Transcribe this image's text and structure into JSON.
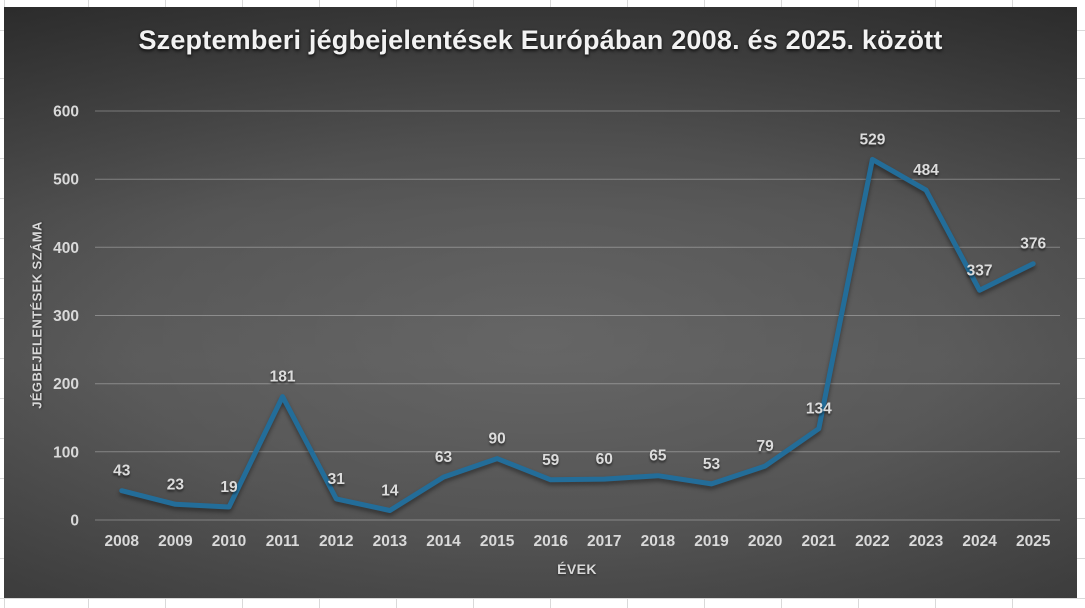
{
  "chart_data": {
    "type": "line",
    "title": "Szeptemberi jégbejelentések Európában 2008. és 2025. között",
    "xlabel": "ÉVEK",
    "ylabel": "JÉGBEJELENTÉSEK SZÁMA",
    "categories": [
      "2008",
      "2009",
      "2010",
      "2011",
      "2012",
      "2013",
      "2014",
      "2015",
      "2016",
      "2017",
      "2018",
      "2019",
      "2020",
      "2021",
      "2022",
      "2023",
      "2024",
      "2025"
    ],
    "values": [
      43,
      23,
      19,
      181,
      31,
      14,
      63,
      90,
      59,
      60,
      65,
      53,
      79,
      134,
      529,
      484,
      337,
      376
    ],
    "ylim": [
      0,
      600
    ],
    "yticks": [
      0,
      100,
      200,
      300,
      400,
      500,
      600
    ],
    "grid": true,
    "legend": "none",
    "data_labels": true,
    "colors": {
      "line": "#236D99",
      "label": "#dcdcdc",
      "tick": "#d9d9d9",
      "title": "#f2f2f2",
      "gridline": "rgba(255,255,255,0.30)",
      "background_center": "#585858",
      "background_edge": "#272727",
      "sheet_background": "#ffffff",
      "sheet_gridline": "#d9d9d9"
    }
  }
}
